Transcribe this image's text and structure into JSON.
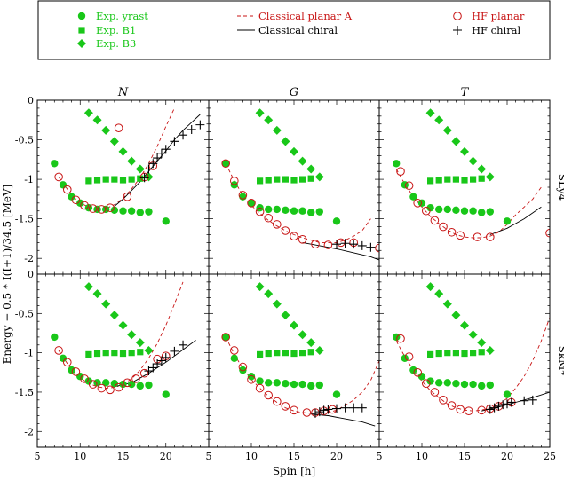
{
  "chart_data": {
    "type": "scatter",
    "xlabel": "Spin [ħ]",
    "ylabel": "Energy − 0.5 * I(I+1)/34.5 [MeV]",
    "xlim": [
      5,
      25
    ],
    "ylim": [
      -2.2,
      0
    ],
    "x_ticks": [
      5,
      10,
      15,
      20,
      25
    ],
    "y_ticks": [
      -2,
      -1.5,
      -1,
      -0.5,
      0
    ],
    "x_tick_labels": [
      "5",
      "10",
      "15",
      "20",
      "5",
      "10",
      "15",
      "20",
      "5",
      "10",
      "15",
      "20",
      "25"
    ],
    "y_tick_labels": [
      "0",
      "-0.5",
      "-1",
      "-1.5",
      "-2"
    ],
    "columns": [
      "N",
      "G",
      "T"
    ],
    "rows": [
      "SLy4",
      "SkM*"
    ],
    "legend_position": "top",
    "legend": [
      {
        "label": "Exp. yrast",
        "marker": "circle",
        "color": "#19c719"
      },
      {
        "label": "Exp. B1",
        "marker": "square",
        "color": "#19c719"
      },
      {
        "label": "Exp. B3",
        "marker": "diamond",
        "color": "#19c719"
      },
      {
        "label": "Classical planar A",
        "marker": "dashed-line",
        "color": "#c81414"
      },
      {
        "label": "Classical chiral",
        "marker": "solid-line",
        "color": "#000000"
      },
      {
        "label": "HF planar",
        "marker": "open-circle",
        "color": "#c81414"
      },
      {
        "label": "HF chiral",
        "marker": "plus",
        "color": "#000000"
      }
    ],
    "experimental": {
      "yrast": [
        [
          7,
          -0.8
        ],
        [
          8,
          -1.07
        ],
        [
          9,
          -1.22
        ],
        [
          10,
          -1.3
        ],
        [
          11,
          -1.36
        ],
        [
          12,
          -1.38
        ],
        [
          13,
          -1.38
        ],
        [
          14,
          -1.39
        ],
        [
          15,
          -1.4
        ],
        [
          16,
          -1.4
        ],
        [
          17,
          -1.42
        ],
        [
          18,
          -1.41
        ],
        [
          20,
          -1.53
        ]
      ],
      "B1": [
        [
          11,
          -1.02
        ],
        [
          12,
          -1.01
        ],
        [
          13,
          -1.0
        ],
        [
          14,
          -1.0
        ],
        [
          15,
          -1.01
        ],
        [
          16,
          -1.0
        ],
        [
          17,
          -0.99
        ]
      ],
      "B3": [
        [
          11,
          -0.16
        ],
        [
          12,
          -0.25
        ],
        [
          13,
          -0.38
        ],
        [
          14,
          -0.52
        ],
        [
          15,
          -0.65
        ],
        [
          16,
          -0.77
        ],
        [
          17,
          -0.87
        ],
        [
          18,
          -0.97
        ]
      ]
    },
    "panels": [
      {
        "column": "N",
        "row": "SLy4",
        "classical_planar_A": [
          [
            7.5,
            -0.97
          ],
          [
            9,
            -1.2
          ],
          [
            10,
            -1.3
          ],
          [
            11,
            -1.35
          ],
          [
            12,
            -1.38
          ],
          [
            13,
            -1.37
          ],
          [
            14,
            -1.32
          ],
          [
            15,
            -1.24
          ],
          [
            16,
            -1.12
          ],
          [
            17,
            -0.98
          ],
          [
            18,
            -0.8
          ],
          [
            19,
            -0.58
          ],
          [
            20,
            -0.33
          ],
          [
            21,
            -0.1
          ]
        ],
        "classical_chiral": [
          [
            14,
            -1.34
          ],
          [
            15,
            -1.25
          ],
          [
            16,
            -1.14
          ],
          [
            17,
            -1.03
          ],
          [
            18,
            -0.9
          ],
          [
            19,
            -0.77
          ],
          [
            20,
            -0.64
          ],
          [
            21,
            -0.5
          ],
          [
            22,
            -0.38
          ],
          [
            23,
            -0.28
          ],
          [
            24,
            -0.18
          ]
        ],
        "hf_planar": [
          [
            7.5,
            -0.97
          ],
          [
            8.5,
            -1.13
          ],
          [
            9.5,
            -1.26
          ],
          [
            10.5,
            -1.33
          ],
          [
            11.5,
            -1.37
          ],
          [
            12.5,
            -1.38
          ],
          [
            13.5,
            -1.36
          ],
          [
            14.5,
            -0.35
          ],
          [
            15.5,
            -1.22
          ],
          [
            17.5,
            -0.97
          ],
          [
            18.5,
            -0.83
          ]
        ],
        "hf_chiral": [
          [
            17.5,
            -0.98
          ],
          [
            18,
            -0.87
          ],
          [
            18.5,
            -0.8
          ],
          [
            19,
            -0.73
          ],
          [
            19.5,
            -0.67
          ],
          [
            20,
            -0.62
          ],
          [
            21,
            -0.52
          ],
          [
            22,
            -0.44
          ],
          [
            23,
            -0.37
          ],
          [
            24,
            -0.31
          ]
        ]
      },
      {
        "column": "G",
        "row": "SLy4",
        "classical_planar_A": [
          [
            7,
            -0.8
          ],
          [
            8,
            -1.02
          ],
          [
            9,
            -1.2
          ],
          [
            10,
            -1.33
          ],
          [
            11,
            -1.43
          ],
          [
            12,
            -1.52
          ],
          [
            13,
            -1.59
          ],
          [
            14,
            -1.65
          ],
          [
            15,
            -1.7
          ],
          [
            16,
            -1.74
          ],
          [
            17,
            -1.77
          ],
          [
            18,
            -1.8
          ],
          [
            19,
            -1.8
          ],
          [
            20,
            -1.8
          ],
          [
            21,
            -1.77
          ],
          [
            22,
            -1.72
          ],
          [
            23,
            -1.65
          ],
          [
            24,
            -1.5
          ]
        ],
        "classical_chiral": [
          [
            16,
            -1.8
          ],
          [
            18,
            -1.84
          ],
          [
            20,
            -1.88
          ],
          [
            22,
            -1.93
          ],
          [
            24,
            -1.98
          ],
          [
            25,
            -2.02
          ]
        ],
        "hf_planar": [
          [
            7,
            -0.8
          ],
          [
            8,
            -1.02
          ],
          [
            9,
            -1.2
          ],
          [
            10,
            -1.3
          ],
          [
            11,
            -1.41
          ],
          [
            12,
            -1.49
          ],
          [
            13,
            -1.57
          ],
          [
            14,
            -1.65
          ],
          [
            15,
            -1.72
          ],
          [
            16,
            -1.76
          ],
          [
            17.5,
            -1.82
          ],
          [
            19,
            -1.83
          ],
          [
            20.5,
            -1.8
          ],
          [
            22,
            -1.8
          ],
          [
            25,
            -1.87
          ]
        ],
        "hf_chiral": [
          [
            20,
            -1.82
          ],
          [
            21,
            -1.81
          ],
          [
            22,
            -1.82
          ],
          [
            23,
            -1.84
          ],
          [
            24,
            -1.86
          ]
        ]
      },
      {
        "column": "T",
        "row": "SLy4",
        "classical_planar_A": [
          [
            7,
            -0.87
          ],
          [
            8,
            -1.06
          ],
          [
            9,
            -1.22
          ],
          [
            10,
            -1.35
          ],
          [
            11,
            -1.47
          ],
          [
            12,
            -1.56
          ],
          [
            13,
            -1.64
          ],
          [
            14,
            -1.7
          ],
          [
            15,
            -1.73
          ],
          [
            16,
            -1.74
          ],
          [
            17,
            -1.74
          ],
          [
            18,
            -1.72
          ],
          [
            19,
            -1.67
          ],
          [
            20,
            -1.57
          ],
          [
            21,
            -1.45
          ],
          [
            22,
            -1.35
          ],
          [
            23,
            -1.25
          ],
          [
            24,
            -1.1
          ]
        ],
        "classical_chiral": [
          [
            18,
            -1.7
          ],
          [
            20,
            -1.62
          ],
          [
            22,
            -1.5
          ],
          [
            24,
            -1.35
          ]
        ],
        "hf_planar": [
          [
            7.5,
            -0.9
          ],
          [
            8.5,
            -1.08
          ],
          [
            9.5,
            -1.3
          ],
          [
            10.5,
            -1.4
          ],
          [
            11.5,
            -1.52
          ],
          [
            12.5,
            -1.6
          ],
          [
            13.5,
            -1.67
          ],
          [
            14.5,
            -1.71
          ],
          [
            16.5,
            -1.73
          ],
          [
            18,
            -1.73
          ],
          [
            25,
            -1.68
          ]
        ],
        "hf_chiral": []
      },
      {
        "column": "N",
        "row": "SkM*",
        "classical_planar_A": [
          [
            7.5,
            -0.97
          ],
          [
            9,
            -1.22
          ],
          [
            10,
            -1.32
          ],
          [
            11,
            -1.39
          ],
          [
            12,
            -1.43
          ],
          [
            13,
            -1.45
          ],
          [
            14,
            -1.44
          ],
          [
            15,
            -1.4
          ],
          [
            16,
            -1.33
          ],
          [
            17,
            -1.22
          ],
          [
            18,
            -1.07
          ],
          [
            19,
            -0.88
          ],
          [
            20,
            -0.65
          ],
          [
            21,
            -0.38
          ],
          [
            22,
            -0.1
          ]
        ],
        "classical_chiral": [
          [
            14,
            -1.43
          ],
          [
            16,
            -1.38
          ],
          [
            18,
            -1.26
          ],
          [
            20,
            -1.12
          ],
          [
            22,
            -0.96
          ],
          [
            23.5,
            -0.84
          ]
        ],
        "hf_planar": [
          [
            7.5,
            -0.97
          ],
          [
            8.5,
            -1.12
          ],
          [
            9.5,
            -1.24
          ],
          [
            10.5,
            -1.33
          ],
          [
            11.5,
            -1.4
          ],
          [
            12.5,
            -1.45
          ],
          [
            13.5,
            -1.47
          ],
          [
            14.5,
            -1.44
          ],
          [
            15.5,
            -1.38
          ],
          [
            16.5,
            -1.33
          ],
          [
            17.5,
            -1.26
          ],
          [
            19,
            -1.08
          ],
          [
            20,
            -1.04
          ]
        ],
        "hf_chiral": [
          [
            18,
            -1.23
          ],
          [
            18.5,
            -1.19
          ],
          [
            19,
            -1.14
          ],
          [
            19.5,
            -1.1
          ],
          [
            20,
            -1.06
          ],
          [
            21,
            -0.98
          ],
          [
            22,
            -0.9
          ]
        ]
      },
      {
        "column": "G",
        "row": "SkM*",
        "classical_planar_A": [
          [
            7,
            -0.8
          ],
          [
            8,
            -1.02
          ],
          [
            9,
            -1.2
          ],
          [
            10,
            -1.34
          ],
          [
            11,
            -1.45
          ],
          [
            12,
            -1.55
          ],
          [
            13,
            -1.63
          ],
          [
            14,
            -1.7
          ],
          [
            15,
            -1.74
          ],
          [
            16,
            -1.76
          ],
          [
            17,
            -1.77
          ],
          [
            18,
            -1.77
          ],
          [
            19,
            -1.76
          ],
          [
            20,
            -1.73
          ],
          [
            21,
            -1.67
          ],
          [
            22,
            -1.6
          ],
          [
            23,
            -1.5
          ],
          [
            24,
            -1.35
          ],
          [
            25,
            -1.1
          ]
        ],
        "classical_chiral": [
          [
            17,
            -1.78
          ],
          [
            19,
            -1.8
          ],
          [
            21,
            -1.84
          ],
          [
            23,
            -1.88
          ],
          [
            24.5,
            -1.93
          ]
        ],
        "hf_planar": [
          [
            7,
            -0.8
          ],
          [
            8,
            -0.97
          ],
          [
            9,
            -1.18
          ],
          [
            10,
            -1.34
          ],
          [
            11,
            -1.45
          ],
          [
            12,
            -1.54
          ],
          [
            13,
            -1.62
          ],
          [
            14,
            -1.68
          ],
          [
            15,
            -1.73
          ],
          [
            16.5,
            -1.76
          ],
          [
            17.5,
            -1.76
          ],
          [
            18.5,
            -1.74
          ],
          [
            19.5,
            -1.72
          ]
        ],
        "hf_chiral": [
          [
            17.5,
            -1.77
          ],
          [
            18,
            -1.75
          ],
          [
            18.5,
            -1.73
          ],
          [
            19,
            -1.72
          ],
          [
            20,
            -1.71
          ],
          [
            21,
            -1.7
          ],
          [
            22,
            -1.7
          ],
          [
            23,
            -1.7
          ]
        ]
      },
      {
        "column": "T",
        "row": "SkM*",
        "classical_planar_A": [
          [
            7,
            -0.85
          ],
          [
            8,
            -1.05
          ],
          [
            9,
            -1.22
          ],
          [
            10,
            -1.36
          ],
          [
            11,
            -1.48
          ],
          [
            12,
            -1.57
          ],
          [
            13,
            -1.65
          ],
          [
            14,
            -1.7
          ],
          [
            15,
            -1.73
          ],
          [
            16,
            -1.74
          ],
          [
            17,
            -1.73
          ],
          [
            18,
            -1.7
          ],
          [
            19,
            -1.66
          ],
          [
            20,
            -1.58
          ],
          [
            21,
            -1.45
          ],
          [
            22,
            -1.3
          ],
          [
            23,
            -1.1
          ],
          [
            24,
            -0.85
          ],
          [
            25,
            -0.55
          ]
        ],
        "classical_chiral": [
          [
            17,
            -1.74
          ],
          [
            19,
            -1.69
          ],
          [
            21,
            -1.63
          ],
          [
            23,
            -1.57
          ],
          [
            25,
            -1.5
          ]
        ],
        "hf_planar": [
          [
            7.5,
            -0.82
          ],
          [
            8.5,
            -1.05
          ],
          [
            9.5,
            -1.25
          ],
          [
            10.5,
            -1.39
          ],
          [
            11.5,
            -1.5
          ],
          [
            12.5,
            -1.6
          ],
          [
            13.5,
            -1.67
          ],
          [
            14.5,
            -1.72
          ],
          [
            15.5,
            -1.74
          ],
          [
            17,
            -1.73
          ],
          [
            18,
            -1.71
          ],
          [
            19,
            -1.68
          ],
          [
            20.5,
            -1.63
          ]
        ],
        "hf_chiral": [
          [
            18,
            -1.72
          ],
          [
            18.5,
            -1.7
          ],
          [
            19,
            -1.68
          ],
          [
            19.5,
            -1.66
          ],
          [
            20,
            -1.65
          ],
          [
            20.5,
            -1.63
          ],
          [
            22,
            -1.61
          ],
          [
            23,
            -1.6
          ]
        ]
      }
    ]
  }
}
